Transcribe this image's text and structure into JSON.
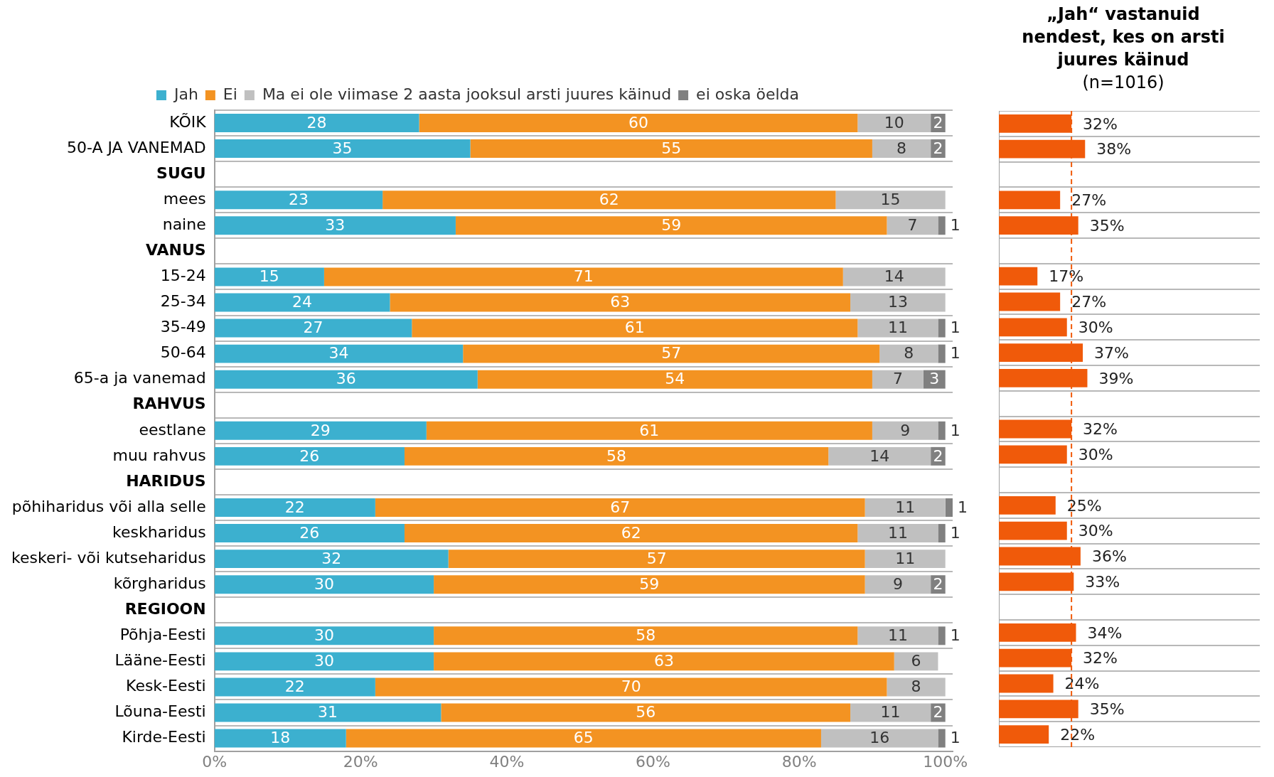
{
  "chart_data": [
    {
      "type": "bar",
      "orientation": "horizontal",
      "stacked": true,
      "legend": "top",
      "data_labels": true,
      "grid": "y",
      "categories": [
        "KÕIK",
        "50-A JA VANEMAD",
        "SUGU",
        "mees",
        "naine",
        "VANUS",
        "15-24",
        "25-34",
        "35-49",
        "50-64",
        "65-a ja vanemad",
        "RAHVUS",
        "eestlane",
        "muu rahvus",
        "HARIDUS",
        "põhiharidus või alla selle",
        "keskharidus",
        "keskeri- või kutseharidus",
        "kõrgharidus",
        "REGIOON",
        "Põhja-Eesti",
        "Lääne-Eesti",
        "Kesk-Eesti",
        "Lõuna-Eesti",
        "Kirde-Eesti"
      ],
      "series": [
        {
          "name": "Jah",
          "color": "#3cb0cf",
          "values": [
            28,
            35,
            null,
            23,
            33,
            null,
            15,
            24,
            27,
            34,
            36,
            null,
            29,
            26,
            null,
            22,
            26,
            32,
            30,
            null,
            30,
            30,
            22,
            31,
            18
          ]
        },
        {
          "name": "Ei",
          "color": "#f39322",
          "values": [
            60,
            55,
            null,
            62,
            59,
            null,
            71,
            63,
            61,
            57,
            54,
            null,
            61,
            58,
            null,
            67,
            62,
            57,
            59,
            null,
            58,
            63,
            70,
            56,
            65
          ]
        },
        {
          "name": "Ma ei ole viimase 2 aasta jooksul arsti juures käinud",
          "color": "#c0c0c0",
          "values": [
            10,
            8,
            null,
            15,
            7,
            null,
            14,
            13,
            11,
            8,
            7,
            null,
            9,
            14,
            null,
            11,
            11,
            11,
            9,
            null,
            11,
            6,
            8,
            11,
            16
          ]
        },
        {
          "name": "ei oska öelda",
          "color": "#808080",
          "values": [
            2,
            2,
            null,
            null,
            1,
            null,
            null,
            null,
            1,
            1,
            3,
            null,
            1,
            2,
            null,
            1,
            1,
            null,
            2,
            null,
            1,
            null,
            null,
            2,
            1
          ]
        }
      ],
      "xlim": [
        0,
        101
      ],
      "xticks": [
        {
          "value": 0,
          "label": "0%"
        },
        {
          "value": 20,
          "label": "20%"
        },
        {
          "value": 40,
          "label": "40%"
        },
        {
          "value": 60,
          "label": "60%"
        },
        {
          "value": 80,
          "label": "80%"
        },
        {
          "value": 100,
          "label": "100%"
        }
      ]
    },
    {
      "type": "bar",
      "orientation": "horizontal",
      "title": "„Jah“ vastanuid nendest, kes on arsti juures käinud",
      "subtitle": "(n=1016)",
      "grid": "y",
      "tick_labels": false,
      "categories": [
        null,
        null,
        null,
        null,
        null,
        null,
        null,
        null,
        null,
        null,
        null,
        null,
        null,
        null,
        null,
        null,
        null,
        null,
        null,
        null,
        null,
        null,
        null,
        null,
        null
      ],
      "values": [
        32,
        38,
        null,
        27,
        35,
        null,
        17,
        27,
        30,
        37,
        39,
        null,
        32,
        30,
        null,
        25,
        30,
        36,
        33,
        null,
        34,
        32,
        24,
        35,
        22
      ],
      "value_labels": [
        "32%",
        "38%",
        null,
        "27%",
        "35%",
        null,
        "17%",
        "27%",
        "30%",
        "37%",
        "39%",
        null,
        "32%",
        "30%",
        null,
        "25%",
        "30%",
        "36%",
        "33%",
        null,
        "34%",
        "32%",
        "24%",
        "35%",
        "22%"
      ],
      "color": "#f05a0a",
      "xlim": [
        0,
        115
      ],
      "ref_lines": [
        {
          "axis": "x",
          "value": 32,
          "color": "#f05a0a",
          "line_style": "dashed"
        }
      ]
    }
  ]
}
